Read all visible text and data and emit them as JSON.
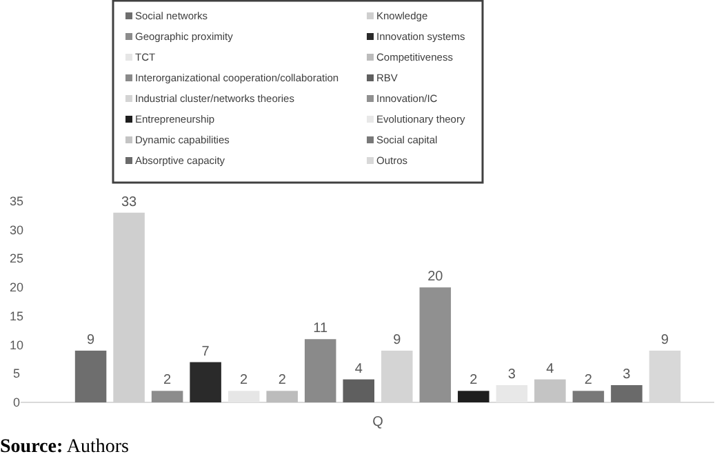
{
  "chart_data": {
    "type": "bar",
    "categories": [
      "Q"
    ],
    "ylim": [
      0,
      35
    ],
    "yticks": [
      0,
      5,
      10,
      15,
      20,
      25,
      30,
      35
    ],
    "grid": false,
    "legend": "top",
    "data_labels": true,
    "annotations": [
      "Source: Authors"
    ],
    "series": [
      {
        "name": "Social networks",
        "color": "#6e6e6e",
        "values": [
          9
        ]
      },
      {
        "name": "Knowledge",
        "color": "#cfcfcf",
        "values": [
          33
        ]
      },
      {
        "name": "Geographic proximity",
        "color": "#8c8c8c",
        "values": [
          2
        ]
      },
      {
        "name": "Innovation systems",
        "color": "#2a2a2a",
        "values": [
          7
        ]
      },
      {
        "name": "TCT",
        "color": "#e6e6e6",
        "values": [
          2
        ]
      },
      {
        "name": "Competitiveness",
        "color": "#bcbcbc",
        "values": [
          2
        ]
      },
      {
        "name": "Interorganizational cooperation/collaboration",
        "color": "#8a8a8a",
        "values": [
          11
        ]
      },
      {
        "name": "RBV",
        "color": "#5f5f5f",
        "values": [
          4
        ]
      },
      {
        "name": "Industrial cluster/networks theories",
        "color": "#d4d4d4",
        "values": [
          9
        ]
      },
      {
        "name": "Innovation/IC",
        "color": "#909090",
        "values": [
          20
        ]
      },
      {
        "name": "Entrepreneurship",
        "color": "#1e1e1e",
        "values": [
          2
        ]
      },
      {
        "name": "Evolutionary theory",
        "color": "#e8e8e8",
        "values": [
          3
        ]
      },
      {
        "name": "Dynamic capabilities",
        "color": "#c4c4c4",
        "values": [
          4
        ]
      },
      {
        "name": "Social capital",
        "color": "#787878",
        "values": [
          2
        ]
      },
      {
        "name": "Absorptive capacity",
        "color": "#6a6a6a",
        "values": [
          3
        ]
      },
      {
        "name": "Outros",
        "color": "#d8d8d8",
        "values": [
          9
        ]
      }
    ]
  }
}
